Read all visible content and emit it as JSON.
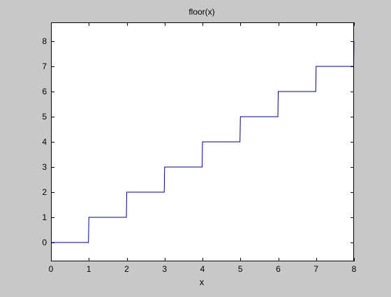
{
  "figure": {
    "background": "#c8c8c8",
    "axes_background": "#ffffff",
    "line_color": "#00008b"
  },
  "chart_data": {
    "type": "line",
    "title": "floor(x)",
    "xlabel": "x",
    "ylabel": "",
    "xlim": [
      0,
      8
    ],
    "ylim": [
      -0.75,
      8.75
    ],
    "grid": false,
    "xticks": [
      0,
      1,
      2,
      3,
      4,
      5,
      6,
      7,
      8
    ],
    "yticks": [
      0,
      1,
      2,
      3,
      4,
      5,
      6,
      7,
      8
    ],
    "series": [
      {
        "x": [
          0,
          0.99,
          1,
          1.99,
          2,
          2.99,
          3,
          3.99,
          4,
          4.99,
          5,
          5.99,
          6,
          6.99,
          7,
          7.99,
          8
        ],
        "y": [
          0,
          0,
          1,
          1,
          2,
          2,
          3,
          3,
          4,
          4,
          5,
          5,
          6,
          6,
          7,
          7,
          8
        ]
      }
    ]
  }
}
